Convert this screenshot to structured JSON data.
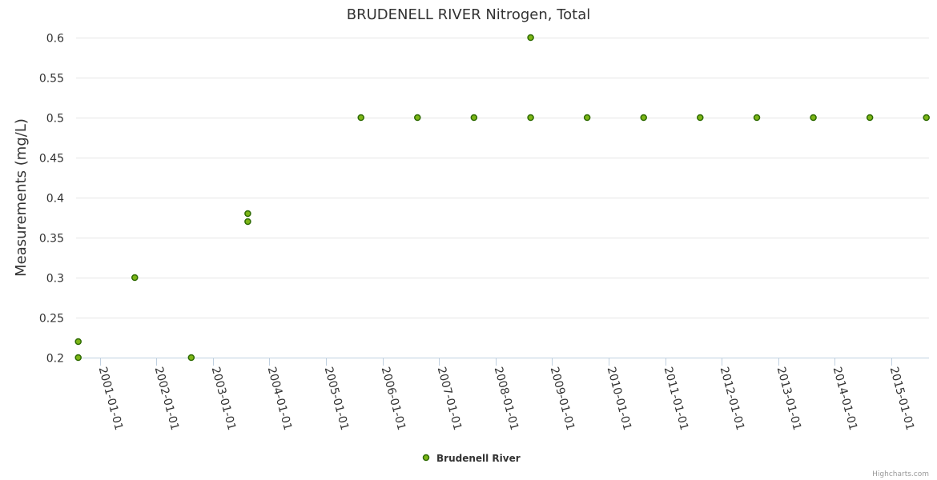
{
  "chart_data": {
    "type": "scatter",
    "title": "BRUDENELL RIVER Nitrogen, Total",
    "xlabel": "",
    "ylabel": "Measurements (mg/L)",
    "ylim": [
      0.2,
      0.6
    ],
    "yticks": [
      "0.2",
      "0.25",
      "0.3",
      "0.35",
      "0.4",
      "0.45",
      "0.5",
      "0.55",
      "0.6"
    ],
    "xlim": [
      "2000-08-01",
      "2015-09-01"
    ],
    "xticks": [
      "2001-01-01",
      "2002-01-01",
      "2003-01-01",
      "2004-01-01",
      "2005-01-01",
      "2006-01-01",
      "2007-01-01",
      "2008-01-01",
      "2009-01-01",
      "2010-01-01",
      "2011-01-01",
      "2012-01-01",
      "2013-01-01",
      "2014-01-01",
      "2015-01-01"
    ],
    "series": [
      {
        "name": "Brudenell River",
        "color": "#7cb516",
        "border": "#2d6a00",
        "points": [
          {
            "x": "2000-08-15",
            "y": 0.22
          },
          {
            "x": "2000-08-15",
            "y": 0.2
          },
          {
            "x": "2001-08-15",
            "y": 0.3
          },
          {
            "x": "2002-08-15",
            "y": 0.2
          },
          {
            "x": "2003-08-15",
            "y": 0.38
          },
          {
            "x": "2003-08-15",
            "y": 0.37
          },
          {
            "x": "2005-08-15",
            "y": 0.5
          },
          {
            "x": "2006-08-15",
            "y": 0.5
          },
          {
            "x": "2007-08-15",
            "y": 0.5
          },
          {
            "x": "2008-08-15",
            "y": 0.6
          },
          {
            "x": "2008-08-15",
            "y": 0.5
          },
          {
            "x": "2009-08-15",
            "y": 0.5
          },
          {
            "x": "2010-08-15",
            "y": 0.5
          },
          {
            "x": "2011-08-15",
            "y": 0.5
          },
          {
            "x": "2012-08-15",
            "y": 0.5
          },
          {
            "x": "2013-08-15",
            "y": 0.5
          },
          {
            "x": "2014-08-15",
            "y": 0.5
          },
          {
            "x": "2015-08-15",
            "y": 0.5
          }
        ]
      }
    ],
    "grid": true,
    "legend_position": "bottom-center"
  },
  "credits": "Highcharts.com"
}
